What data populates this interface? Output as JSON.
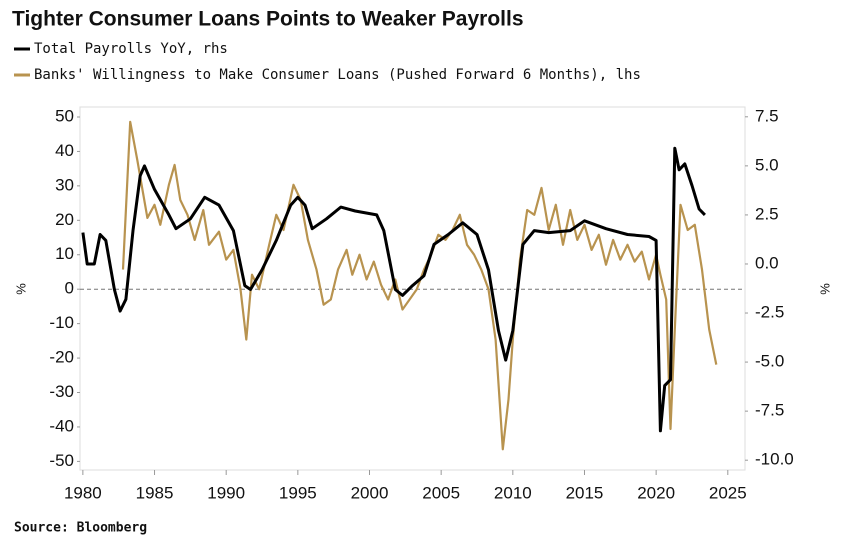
{
  "chart_data": {
    "type": "line",
    "title": "Tighter Consumer Loans Points to Weaker Payrolls",
    "source": "Source: Bloomberg",
    "ylabel": "%",
    "y2label": "%",
    "xlim": [
      1979.8,
      2026.2
    ],
    "xticks": [
      1980,
      1985,
      1990,
      1995,
      2000,
      2005,
      2010,
      2015,
      2020,
      2025
    ],
    "ylim": [
      -52.5,
      52.9
    ],
    "yticks": [
      50,
      40,
      30,
      20,
      10,
      0,
      -10,
      -20,
      -30,
      -40,
      -50
    ],
    "y2lim": [
      -10.5,
      8.0
    ],
    "y2ticks": [
      7.5,
      {
        "value": 5,
        "label": "5.0"
      },
      2.5,
      {
        "value": 0,
        "label": "0.0"
      },
      -2.5,
      {
        "value": -5,
        "label": "-5.0"
      },
      -7.5,
      {
        "value": -10,
        "label": "-10.0"
      }
    ],
    "hline": 0,
    "series": [
      {
        "name": "Total Payrolls YoY, rhs",
        "color": "#000000",
        "axis": "y2",
        "x": [
          1980.0,
          1980.3,
          1980.8,
          1981.2,
          1981.6,
          1982.2,
          1982.6,
          1983.0,
          1983.5,
          1984.0,
          1984.3,
          1985.0,
          1986.0,
          1986.5,
          1987.5,
          1988.5,
          1989.5,
          1990.5,
          1991.3,
          1991.7,
          1992.5,
          1993.5,
          1994.5,
          1995.0,
          1995.5,
          1996.0,
          1997.0,
          1998.0,
          1999.0,
          2000.5,
          2001.0,
          2001.8,
          2002.3,
          2003.0,
          2003.8,
          2004.5,
          2005.5,
          2006.5,
          2007.5,
          2008.3,
          2009.0,
          2009.5,
          2010.0,
          2010.7,
          2011.5,
          2012.5,
          2014.0,
          2015.0,
          2016.5,
          2018.0,
          2019.5,
          2020.0,
          2020.3,
          2020.6,
          2021.0,
          2021.3,
          2021.6,
          2022.0,
          2022.5,
          2023.0,
          2023.4
        ],
        "values": [
          1.6,
          0,
          0,
          1.5,
          1.2,
          -1.3,
          -2.4,
          -1.8,
          1.7,
          4.5,
          5.0,
          3.8,
          2.5,
          1.8,
          2.3,
          3.4,
          3.0,
          1.7,
          -1.1,
          -1.3,
          -0.3,
          1.2,
          3.0,
          3.4,
          3.0,
          1.8,
          2.3,
          2.9,
          2.7,
          2.5,
          1.7,
          -1.3,
          -1.6,
          -1.1,
          -0.6,
          1.0,
          1.5,
          2.1,
          1.5,
          -0.3,
          -3.4,
          -4.9,
          -3.4,
          1.0,
          1.7,
          1.6,
          1.7,
          2.2,
          1.8,
          1.5,
          1.4,
          1.2,
          -8.5,
          -6.2,
          -5.9,
          5.9,
          4.8,
          5.1,
          4.0,
          2.8,
          2.5
        ]
      },
      {
        "name": "Banks' Willingness to Make Consumer Loans (Pushed Forward 6 Months), lhs",
        "color": "#b8934f",
        "axis": "y",
        "x": [
          1982.8,
          1983.3,
          1983.8,
          1984.1,
          1984.5,
          1985.0,
          1985.4,
          1986.0,
          1986.4,
          1986.8,
          1987.3,
          1987.8,
          1988.4,
          1988.8,
          1989.5,
          1990.0,
          1990.5,
          1991.0,
          1991.4,
          1991.8,
          1992.3,
          1993.0,
          1993.5,
          1994.0,
          1994.7,
          1995.2,
          1995.7,
          1996.3,
          1996.8,
          1997.3,
          1997.8,
          1998.4,
          1998.8,
          1999.3,
          1999.8,
          2000.3,
          2000.8,
          2001.3,
          2001.8,
          2002.3,
          2002.8,
          2003.3,
          2003.8,
          2004.3,
          2004.8,
          2005.3,
          2005.8,
          2006.3,
          2006.8,
          2007.3,
          2007.8,
          2008.3,
          2008.8,
          2009.3,
          2009.7,
          2010.0,
          2010.5,
          2011.0,
          2011.5,
          2012.0,
          2012.5,
          2013.0,
          2013.5,
          2014.0,
          2014.5,
          2015.0,
          2015.5,
          2016.0,
          2016.5,
          2017.0,
          2017.5,
          2018.0,
          2018.5,
          2019.0,
          2019.5,
          2020.0,
          2020.3,
          2020.7,
          2021.0,
          2021.3,
          2021.7,
          2022.2,
          2022.7,
          2023.2,
          2023.7,
          2024.2
        ],
        "values": [
          5.7,
          48.6,
          37.5,
          30.3,
          20.7,
          24.5,
          18.7,
          30.3,
          36.1,
          25.9,
          21.6,
          14.3,
          23,
          12.9,
          16.7,
          8.6,
          11.4,
          0,
          -14.6,
          4.2,
          0,
          12.9,
          21.6,
          17.2,
          30.3,
          25.9,
          14.3,
          5.7,
          -4.5,
          -3,
          5.7,
          11.4,
          4.2,
          10,
          2.8,
          8,
          1.3,
          -3,
          2.8,
          -5.9,
          -3,
          0,
          5.7,
          10,
          15.8,
          14.3,
          17.2,
          21.6,
          12.9,
          10,
          5.7,
          0,
          -14.6,
          -46.5,
          -32,
          -14.6,
          8.6,
          23,
          21.6,
          29.4,
          17.2,
          24.5,
          12.9,
          23,
          14.3,
          18.7,
          11.4,
          15.8,
          7.1,
          14.3,
          8.6,
          12.9,
          8,
          10.9,
          2.8,
          10,
          4.2,
          -3,
          -40.6,
          -11.7,
          24.5,
          17.2,
          18.7,
          5.7,
          -11.7,
          -21.9
        ]
      }
    ]
  }
}
